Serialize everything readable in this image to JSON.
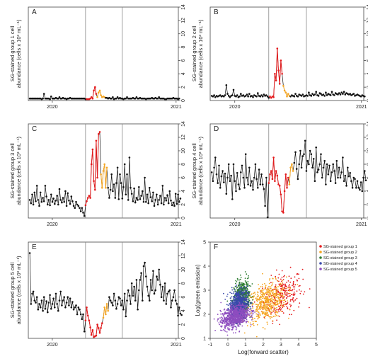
{
  "chart_data": [
    {
      "type": "line",
      "panel_label": "A",
      "ylabel_line1": "SG-stained group 1 cell",
      "ylabel_line2": "abundance (cells x 10³ mL⁻¹)",
      "ylim": [
        0,
        14
      ],
      "yticks": [
        "0",
        "2",
        "4",
        "6",
        "8",
        "10",
        "12",
        "14"
      ],
      "xticks": [
        "2020",
        "2021"
      ],
      "grid": false,
      "vlines_week": [
        47,
        78
      ],
      "values": [
        0.3,
        0.3,
        0.3,
        0.3,
        0.3,
        0.3,
        0.3,
        0.3,
        0.3,
        0.3,
        0.2,
        0.3,
        1.0,
        0.3,
        0.3,
        0.3,
        0.3,
        0.2,
        0.6,
        0.3,
        0.3,
        0.3,
        0.4,
        0.3,
        0.3,
        0.5,
        0.3,
        0.3,
        0.4,
        0.3,
        0.3,
        0.2,
        0.3,
        0.3,
        0.4,
        0.3,
        0.3,
        0.3,
        0.3,
        0.3,
        0.3,
        0.3,
        0.3,
        0.3,
        0.3,
        0.3,
        0.3,
        0.2,
        0.2,
        0.2,
        0.2,
        0.3,
        0.5,
        0.3,
        1.5,
        2.0,
        1.0,
        0.5,
        1.2,
        1.5,
        0.8,
        0.5,
        0.6,
        0.5,
        0.4,
        0.4,
        0.3,
        0.4,
        0.3,
        0.3,
        0.5,
        0.2,
        0.3,
        0.3,
        0.5,
        0.3,
        0.4,
        0.3,
        0.3,
        0.2,
        0.3,
        0.3,
        0.5,
        0.3,
        0.3,
        0.3,
        0.3,
        0.4,
        0.3,
        0.3,
        0.5,
        0.3,
        0.3,
        0.4,
        0.3,
        0.3,
        0.3,
        0.3,
        0.2,
        0.3,
        0.3,
        0.3,
        0.3,
        0.4,
        0.3,
        0.3,
        0.4,
        0.3,
        0.3,
        0.5,
        0.3,
        0.3,
        0.3,
        0.3,
        0.2,
        0.2,
        0.3,
        0.3,
        0.3,
        0.3,
        0.3,
        0.4,
        0.3,
        0.3,
        0.3,
        0.2,
        0.3
      ],
      "red_range": [
        48,
        56
      ],
      "orange_range": [
        57,
        63
      ]
    },
    {
      "type": "line",
      "panel_label": "B",
      "ylabel_line1": "SG-stained group 2 cell",
      "ylabel_line2": "abundance (cells x 10³ mL⁻¹)",
      "ylim": [
        0,
        14
      ],
      "yticks": [
        "0",
        "2",
        "4",
        "6",
        "8",
        "10",
        "12",
        "14"
      ],
      "xticks": [
        "2020",
        "2021"
      ],
      "grid": false,
      "vlines_week": [
        47,
        78
      ],
      "values": [
        0.7,
        0.6,
        0.8,
        0.5,
        0.7,
        0.6,
        0.7,
        0.8,
        0.6,
        0.7,
        0.6,
        0.8,
        2.3,
        1.0,
        0.7,
        0.5,
        0.7,
        0.8,
        1.6,
        0.7,
        0.6,
        0.8,
        0.5,
        0.6,
        1.0,
        0.7,
        0.8,
        0.6,
        0.7,
        0.9,
        0.6,
        1.0,
        0.6,
        0.7,
        0.5,
        0.8,
        0.7,
        0.6,
        1.1,
        0.7,
        0.6,
        0.8,
        0.6,
        0.9,
        0.7,
        0.8,
        0.6,
        0.4,
        0.6,
        0.4,
        0.6,
        0.5,
        4.0,
        3.0,
        7.8,
        4.5,
        2.5,
        6.0,
        4.0,
        2.2,
        1.5,
        1.2,
        0.6,
        1.0,
        0.7,
        0.6,
        0.8,
        0.7,
        0.6,
        1.0,
        0.7,
        0.6,
        0.9,
        0.8,
        0.7,
        0.9,
        0.6,
        0.7,
        0.8,
        0.7,
        1.2,
        0.8,
        0.7,
        1.0,
        0.8,
        0.9,
        1.3,
        0.8,
        0.7,
        1.1,
        1.0,
        0.8,
        0.9,
        0.7,
        1.2,
        0.8,
        1.0,
        0.9,
        0.8,
        1.3,
        0.9,
        0.8,
        1.1,
        1.0,
        0.9,
        1.1,
        0.9,
        1.2,
        1.0,
        1.3,
        0.9,
        1.1,
        1.0,
        0.9,
        1.0,
        0.8,
        0.9,
        1.0,
        0.7,
        0.8,
        0.9,
        0.8,
        0.7,
        0.6,
        0.8,
        0.7,
        0.6
      ],
      "red_range": [
        48,
        58
      ],
      "orange_range": [
        59,
        64
      ]
    },
    {
      "type": "line",
      "panel_label": "C",
      "ylabel_line1": "SG-stained group 3 cell",
      "ylabel_line2": "abundance (cells x 10³ mL⁻¹)",
      "ylim": [
        0,
        14
      ],
      "yticks": [
        "0",
        "2",
        "4",
        "6",
        "8",
        "10",
        "12",
        "14"
      ],
      "xticks": [
        "2020",
        "2021"
      ],
      "grid": false,
      "vlines_week": [
        47,
        78
      ],
      "values": [
        2.7,
        2.2,
        3.5,
        2.0,
        3.8,
        2.5,
        4.8,
        2.7,
        1.8,
        3.8,
        2.4,
        3.0,
        2.5,
        4.8,
        3.2,
        2.0,
        2.7,
        1.9,
        3.5,
        2.4,
        2.9,
        2.1,
        2.6,
        3.3,
        2.0,
        4.3,
        2.7,
        2.3,
        3.0,
        2.4,
        4.0,
        1.8,
        3.7,
        2.6,
        2.1,
        3.2,
        2.5,
        1.8,
        1.5,
        2.4,
        2.0,
        1.8,
        1.5,
        1.0,
        1.5,
        0.8,
        0.3,
        1.9,
        2.5,
        3.0,
        3.3,
        3.0,
        8.0,
        10.2,
        5.5,
        4.2,
        11.5,
        6.0,
        12.5,
        12.8,
        6.5,
        4.5,
        7.0,
        8.0,
        4.5,
        7.5,
        4.5,
        3.0,
        4.2,
        6.5,
        4.0,
        5.0,
        3.0,
        5.2,
        7.5,
        2.8,
        6.5,
        5.2,
        2.9,
        4.6,
        8.0,
        3.5,
        6.5,
        2.7,
        9.0,
        4.5,
        3.6,
        2.5,
        4.4,
        2.3,
        3.0,
        2.7,
        4.6,
        2.8,
        3.3,
        4.0,
        2.4,
        6.0,
        2.4,
        3.5,
        2.2,
        4.5,
        3.1,
        2.5,
        3.8,
        1.8,
        2.7,
        3.5,
        2.0,
        2.7,
        3.3,
        2.2,
        4.8,
        2.0,
        3.0,
        2.6,
        3.4,
        2.2,
        4.0,
        2.6,
        1.9,
        2.3,
        1.8,
        3.6,
        2.1,
        3.5,
        2.4,
        2.9
      ],
      "red_range": [
        47,
        59
      ],
      "orange_range": [
        60,
        65
      ]
    },
    {
      "type": "line",
      "panel_label": "D",
      "ylabel_line1": "SG-stained group 4 cell",
      "ylabel_line2": "abundance (cells x 10³ mL⁻¹)",
      "ylim": [
        0,
        14
      ],
      "yticks": [
        "0",
        "2",
        "4",
        "6",
        "8",
        "10",
        "12",
        "14"
      ],
      "xticks": [
        "2020",
        "2021"
      ],
      "grid": false,
      "vlines_week": [
        47,
        78
      ],
      "values": [
        6.8,
        5.5,
        7.5,
        9.0,
        6.5,
        5.2,
        7.8,
        4.5,
        6.2,
        7.0,
        5.3,
        6.6,
        3.6,
        6.0,
        8.0,
        5.5,
        6.3,
        2.8,
        8.0,
        5.5,
        4.0,
        6.7,
        5.0,
        4.3,
        6.8,
        7.8,
        6.0,
        4.5,
        9.5,
        6.0,
        5.0,
        7.5,
        4.8,
        5.5,
        4.2,
        6.0,
        8.0,
        5.8,
        4.5,
        7.2,
        5.0,
        6.5,
        5.0,
        4.3,
        1.8,
        6.0,
        0.1,
        5.2,
        6.5,
        7.0,
        5.8,
        9.0,
        5.5,
        7.0,
        6.3,
        5.0,
        4.8,
        3.5,
        1.0,
        0.8,
        4.0,
        6.5,
        4.5,
        6.0,
        5.0,
        7.5,
        8.0,
        7.0,
        8.2,
        9.8,
        7.3,
        5.8,
        8.0,
        10.0,
        7.5,
        9.2,
        9.5,
        11.5,
        7.0,
        8.5,
        8.0,
        10.0,
        9.5,
        7.5,
        8.8,
        5.5,
        10.5,
        6.8,
        7.2,
        8.0,
        9.5,
        6.0,
        7.5,
        8.5,
        5.0,
        8.0,
        6.5,
        7.8,
        5.5,
        6.8,
        8.0,
        7.0,
        5.2,
        8.5,
        6.0,
        7.5,
        6.0,
        6.8,
        9.0,
        5.5,
        6.3,
        4.8,
        7.5,
        6.2,
        6.7,
        5.5,
        4.5,
        6.0,
        5.8,
        4.5,
        5.5,
        4.5,
        4.2,
        5.3,
        4.0,
        6.0,
        7.0,
        5.6
      ],
      "red_range": [
        47,
        63
      ],
      "orange_range": [
        64,
        67
      ]
    },
    {
      "type": "line",
      "panel_label": "E",
      "ylabel_line1": "SG-stained group 5 cell",
      "ylabel_line2": "abundance (cells x 10³ mL⁻¹)",
      "ylim": [
        0,
        14
      ],
      "yticks": [
        "0",
        "2",
        "4",
        "6",
        "8",
        "10",
        "12",
        "14"
      ],
      "xticks": [
        "2020",
        "2021"
      ],
      "grid": false,
      "vlines_week": [
        47,
        78
      ],
      "values": [
        12.4,
        5.0,
        6.5,
        6.8,
        5.5,
        5.2,
        6.0,
        4.2,
        5.0,
        4.5,
        5.5,
        4.0,
        6.0,
        4.3,
        5.4,
        3.8,
        5.2,
        6.3,
        4.3,
        5.0,
        5.8,
        4.5,
        6.5,
        5.0,
        4.0,
        5.5,
        6.8,
        4.8,
        5.5,
        6.0,
        4.5,
        5.2,
        6.0,
        4.8,
        5.8,
        4.5,
        5.3,
        4.2,
        4.5,
        4.8,
        3.5,
        4.5,
        4.2,
        3.5,
        2.8,
        3.5,
        1.0,
        2.6,
        4.5,
        3.3,
        2.6,
        1.6,
        0.5,
        1.2,
        0.2,
        0.3,
        0.4,
        2.0,
        1.5,
        0.8,
        1.5,
        2.2,
        3.0,
        4.5,
        3.5,
        5.0,
        4.0,
        6.0,
        5.5,
        5.2,
        4.8,
        6.5,
        5.5,
        4.3,
        5.0,
        6.0,
        5.8,
        4.8,
        5.5,
        4.2,
        6.5,
        3.2,
        5.5,
        7.0,
        6.2,
        5.0,
        8.0,
        6.2,
        7.5,
        5.5,
        8.5,
        4.2,
        7.0,
        8.5,
        9.5,
        5.5,
        10.5,
        11.0,
        9.0,
        7.5,
        6.2,
        5.5,
        8.5,
        7.0,
        9.8,
        6.5,
        7.0,
        9.0,
        8.5,
        10.0,
        7.8,
        6.0,
        7.5,
        5.5,
        8.0,
        5.0,
        6.5,
        6.8,
        7.0,
        4.5,
        5.5,
        6.0,
        7.0,
        5.5,
        5.0,
        3.3,
        4.5,
        3.6,
        3.4
      ],
      "red_range": [
        47,
        61
      ],
      "orange_range": [
        62,
        66
      ]
    },
    {
      "type": "scatter",
      "panel_label": "F",
      "xlabel": "Log(forward scatter)",
      "ylabel": "Log(green emission)",
      "xlim": [
        -1,
        5
      ],
      "ylim": [
        1,
        5
      ],
      "xticks": [
        "-1",
        "0",
        "1",
        "2",
        "3",
        "4",
        "5"
      ],
      "yticks": [
        "1",
        "2",
        "3",
        "4",
        "5"
      ],
      "grid": false,
      "legend_position": "top-right",
      "clusters": [
        {
          "name": "SG-stained group 1",
          "color": "#e41a1c",
          "cx": 3.1,
          "cy": 2.8,
          "sx": 0.55,
          "sy": 0.45,
          "n": 260
        },
        {
          "name": "SG-stained group 2",
          "color": "#f5a623",
          "cx": 2.2,
          "cy": 2.5,
          "sx": 0.55,
          "sy": 0.38,
          "n": 520
        },
        {
          "name": "SG-stained group 3",
          "color": "#2e7d32",
          "cx": 0.8,
          "cy": 2.7,
          "sx": 0.22,
          "sy": 0.35,
          "n": 520
        },
        {
          "name": "SG-stained group 4",
          "color": "#3949ab",
          "cx": 0.6,
          "cy": 2.4,
          "sx": 0.25,
          "sy": 0.32,
          "n": 650
        },
        {
          "name": "SG-stained group 5",
          "color": "#8e4dbf",
          "cx": 0.4,
          "cy": 1.9,
          "sx": 0.4,
          "sy": 0.22,
          "n": 760
        }
      ]
    }
  ]
}
